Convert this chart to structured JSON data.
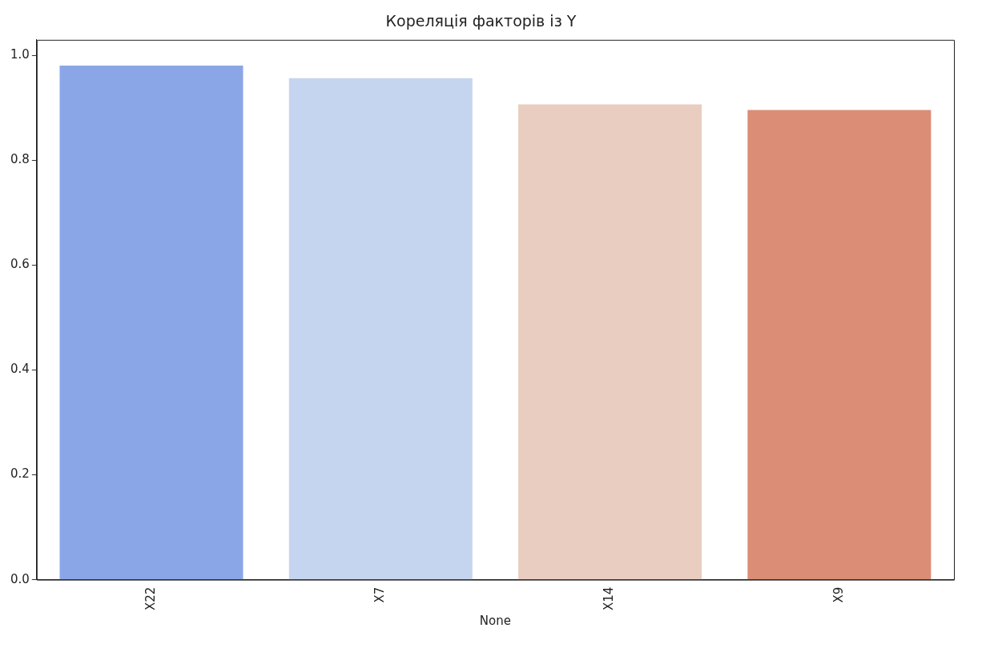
{
  "chart_data": {
    "type": "bar",
    "title": "Кореляція факторів із Y",
    "xlabel": "None",
    "categories": [
      "X22",
      "X7",
      "X14",
      "X9"
    ],
    "values": [
      0.981,
      0.957,
      0.907,
      0.896
    ],
    "colors": [
      "#8aa6e6",
      "#c5d5ef",
      "#e9cdc0",
      "#db8d76"
    ],
    "ylim": [
      0,
      1.03
    ],
    "yticks": [
      {
        "value": 0,
        "label": "0.0"
      },
      {
        "value": 0.2,
        "label": "0.2"
      },
      {
        "value": 0.4,
        "label": "0.4"
      },
      {
        "value": 0.6,
        "label": "0.6"
      },
      {
        "value": 0.8,
        "label": "0.8"
      },
      {
        "value": 1,
        "label": "1.0"
      }
    ],
    "grid": false,
    "legend": false
  }
}
